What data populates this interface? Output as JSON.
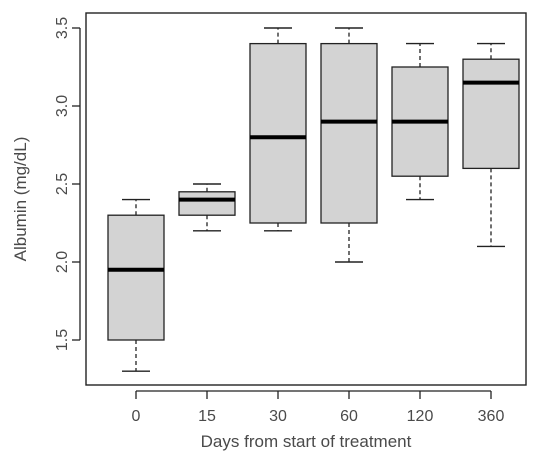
{
  "chart_data": {
    "type": "boxplot",
    "title": "",
    "xlabel": "Days from start of treatment",
    "ylabel": "Albumin (mg/dL)",
    "ylim": [
      1.2,
      3.55
    ],
    "yticks": [
      "1.5",
      "2.0",
      "2.5",
      "3.0",
      "3.5"
    ],
    "categories": [
      "0",
      "15",
      "30",
      "60",
      "120",
      "360"
    ],
    "boxes": [
      {
        "category": "0",
        "whisker_low": 1.3,
        "q1": 1.5,
        "median": 1.95,
        "q3": 2.3,
        "whisker_high": 2.4
      },
      {
        "category": "15",
        "whisker_low": 2.2,
        "q1": 2.3,
        "median": 2.4,
        "q3": 2.45,
        "whisker_high": 2.5
      },
      {
        "category": "30",
        "whisker_low": 2.2,
        "q1": 2.25,
        "median": 2.8,
        "q3": 3.4,
        "whisker_high": 3.5
      },
      {
        "category": "60",
        "whisker_low": 2.0,
        "q1": 2.25,
        "median": 2.9,
        "q3": 3.4,
        "whisker_high": 3.5
      },
      {
        "category": "120",
        "whisker_low": 2.4,
        "q1": 2.55,
        "median": 2.9,
        "q3": 3.25,
        "whisker_high": 3.4
      },
      {
        "category": "360",
        "whisker_low": 2.1,
        "q1": 2.6,
        "median": 3.15,
        "q3": 3.3,
        "whisker_high": 3.4
      }
    ],
    "box_fill": "#d3d3d3",
    "line_color": "#222222",
    "grid": false,
    "legend": "none"
  }
}
